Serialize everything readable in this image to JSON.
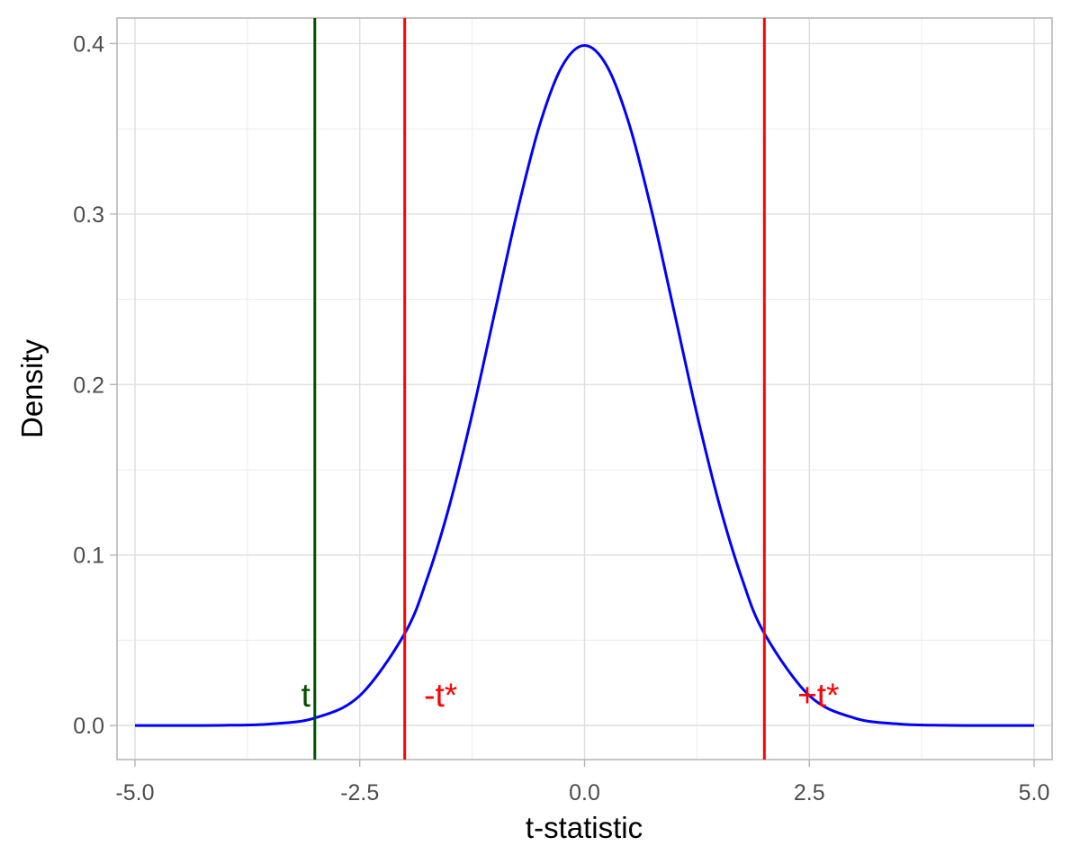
{
  "chart_data": {
    "type": "line",
    "title": "",
    "xlabel": "t-statistic",
    "ylabel": "Density",
    "xlim": [
      -5.2,
      5.2
    ],
    "ylim": [
      -0.02,
      0.415
    ],
    "x_ticks": [
      -5.0,
      -2.5,
      0.0,
      2.5,
      5.0
    ],
    "x_tick_labels": [
      "-5.0",
      "-2.5",
      "0.0",
      "2.5",
      "5.0"
    ],
    "y_ticks": [
      0.0,
      0.1,
      0.2,
      0.3,
      0.4
    ],
    "y_tick_labels": [
      "0.0",
      "0.1",
      "0.2",
      "0.3",
      "0.4"
    ],
    "grid": true,
    "series": [
      {
        "color": "#0000ff",
        "x": [
          -5.0,
          -4.5,
          -4.0,
          -3.5,
          -3.0,
          -2.5,
          -2.0,
          -1.75,
          -1.5,
          -1.25,
          -1.0,
          -0.75,
          -0.5,
          -0.25,
          0.0,
          0.25,
          0.5,
          0.75,
          1.0,
          1.25,
          1.5,
          1.75,
          2.0,
          2.5,
          3.0,
          3.5,
          4.0,
          4.5,
          5.0
        ],
        "y": [
          1.5e-06,
          1.6e-05,
          0.00013,
          0.00087,
          0.0044,
          0.0175,
          0.054,
          0.0863,
          0.1295,
          0.1826,
          0.242,
          0.3011,
          0.3521,
          0.3867,
          0.3989,
          0.3867,
          0.3521,
          0.3011,
          0.242,
          0.1826,
          0.1295,
          0.0863,
          0.054,
          0.0175,
          0.0044,
          0.00087,
          0.00013,
          1.6e-05,
          1.5e-06
        ]
      }
    ],
    "vlines": [
      {
        "x": -3.0,
        "color": "#005000"
      },
      {
        "x": -2.0,
        "color": "#ff0000"
      },
      {
        "x": 2.0,
        "color": "#ff0000"
      }
    ],
    "annotations": [
      {
        "text": "t",
        "x": -3.1,
        "y": 0.018,
        "color": "#005000"
      },
      {
        "text": "-t*",
        "x": -1.6,
        "y": 0.018,
        "color": "#ff0000"
      },
      {
        "text": "+t*",
        "x": 2.6,
        "y": 0.018,
        "color": "#ff0000"
      }
    ]
  }
}
